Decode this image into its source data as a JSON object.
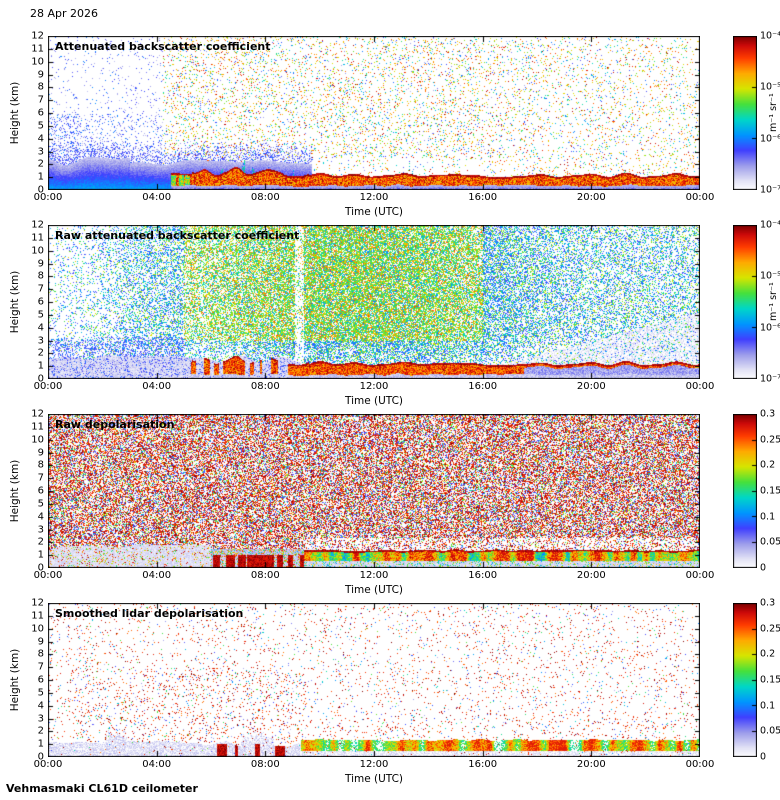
{
  "date_label": "28 Apr 2026",
  "footer": "Vehmasmaki CL61D ceilometer",
  "axis": {
    "xlabel": "Time (UTC)",
    "ylabel": "Height (km)",
    "x_ticks": [
      "00:00",
      "04:00",
      "08:00",
      "12:00",
      "16:00",
      "20:00",
      "00:00"
    ],
    "y_ticks": [
      "12",
      "11",
      "10",
      "9",
      "8",
      "7",
      "6",
      "5",
      "4",
      "3",
      "2",
      "1",
      "0"
    ]
  },
  "colorbars": {
    "backscatter": {
      "scale": "log",
      "ticks": [
        "10⁻⁴",
        "10⁻⁵",
        "10⁻⁶",
        "10⁻⁷"
      ],
      "unit": "m⁻¹ sr⁻¹"
    },
    "depol": {
      "scale": "linear",
      "ticks": [
        "0.3",
        "0.25",
        "0.2",
        "0.15",
        "0.1",
        "0.05",
        "0"
      ],
      "unit": ""
    }
  },
  "panels": [
    {
      "title": "Attenuated backscatter coefficient",
      "cbar": "backscatter"
    },
    {
      "title": "Raw attenuated backscatter coefficient",
      "cbar": "backscatter"
    },
    {
      "title": "Raw depolarisation",
      "cbar": "depol"
    },
    {
      "title": "Smoothed lidar depolarisation",
      "cbar": "depol"
    }
  ],
  "chart_data": [
    {
      "type": "heatmap",
      "title": "Attenuated backscatter coefficient",
      "xlabel": "Time (UTC)",
      "ylabel": "Height (km)",
      "xlim_hours": [
        0,
        24
      ],
      "ylim_km": [
        0,
        12
      ],
      "x_ticks": [
        "00:00",
        "04:00",
        "08:00",
        "12:00",
        "16:00",
        "20:00",
        "00:00"
      ],
      "y_ticks": [
        0,
        1,
        2,
        3,
        4,
        5,
        6,
        7,
        8,
        9,
        10,
        11,
        12
      ],
      "colorbar": {
        "scale": "log",
        "min": 1e-07,
        "max": 0.0001,
        "unit": "m⁻¹ sr⁻¹",
        "ticks": [
          "10⁻⁴",
          "10⁻⁵",
          "10⁻⁶",
          "10⁻⁷"
        ]
      },
      "features": [
        {
          "name": "aerosol boundary layer",
          "time_h": [
            0,
            9.5
          ],
          "height_km": [
            0,
            2.5
          ],
          "approx_value": "~1e-6 (blue)"
        },
        {
          "name": "low cloud / precipitation band",
          "time_h": [
            4.5,
            24
          ],
          "height_km": [
            0.3,
            1.6
          ],
          "approx_value": ">1e-5 (saturated red, dark upper edge)"
        },
        {
          "name": "convective plumes",
          "time_h": [
            5.2,
            9.6
          ],
          "height_km": [
            0,
            4
          ],
          "approx_value": "~3e-6 (cyan-green columns)"
        },
        {
          "name": "sparse background noise speckle",
          "time_h": [
            0,
            24
          ],
          "height_km": [
            2,
            12
          ],
          "approx_value": "1e-7 to 1e-5 (warm-coloured speckle after 04:00)"
        }
      ]
    },
    {
      "type": "heatmap",
      "title": "Raw attenuated backscatter coefficient",
      "xlabel": "Time (UTC)",
      "ylabel": "Height (km)",
      "xlim_hours": [
        0,
        24
      ],
      "ylim_km": [
        0,
        12
      ],
      "x_ticks": [
        "00:00",
        "04:00",
        "08:00",
        "12:00",
        "16:00",
        "20:00",
        "00:00"
      ],
      "y_ticks": [
        0,
        1,
        2,
        3,
        4,
        5,
        6,
        7,
        8,
        9,
        10,
        11,
        12
      ],
      "colorbar": {
        "scale": "log",
        "min": 1e-07,
        "max": 0.0001,
        "unit": "m⁻¹ sr⁻¹",
        "ticks": [
          "10⁻⁴",
          "10⁻⁵",
          "10⁻⁶",
          "10⁻⁷"
        ]
      },
      "features": [
        {
          "name": "daytime solar background noise",
          "time_h": [
            5,
            17
          ],
          "height_km": [
            0,
            12
          ],
          "approx_value": "dense cyan/green/yellow speckle ~1e-6 to 1e-5"
        },
        {
          "name": "night-time sparse blue noise",
          "time_h": [
            0,
            5
          ],
          "height_km": [
            2,
            12
          ],
          "approx_value": "~1e-7 to 1e-6"
        },
        {
          "name": "low cloud / precipitation band",
          "time_h": [
            5.2,
            24
          ],
          "height_km": [
            0.3,
            1.6
          ],
          "approx_value": ">1e-5 (saturated red, dark upper edge)"
        },
        {
          "name": "pale low-aerosol layer",
          "time_h": [
            0,
            9.3
          ],
          "height_km": [
            0,
            2
          ],
          "approx_value": "~1e-7"
        },
        {
          "name": "reduced-noise wedge",
          "time_h": [
            14.5,
            24
          ],
          "height_km": [
            0,
            5
          ],
          "approx_value": "pale, low signal"
        },
        {
          "name": "light vertical gap",
          "time_h": [
            9.1,
            9.4
          ],
          "height_km": [
            0,
            12
          ],
          "approx_value": "data gap / reduced noise column"
        }
      ]
    },
    {
      "type": "heatmap",
      "title": "Raw depolarisation",
      "xlabel": "Time (UTC)",
      "ylabel": "Height (km)",
      "xlim_hours": [
        0,
        24
      ],
      "ylim_km": [
        0,
        12
      ],
      "x_ticks": [
        "00:00",
        "04:00",
        "08:00",
        "12:00",
        "16:00",
        "20:00",
        "00:00"
      ],
      "y_ticks": [
        0,
        1,
        2,
        3,
        4,
        5,
        6,
        7,
        8,
        9,
        10,
        11,
        12
      ],
      "colorbar": {
        "scale": "linear",
        "min": 0,
        "max": 0.3,
        "unit": "",
        "ticks": [
          0.3,
          0.25,
          0.2,
          0.15,
          0.1,
          0.05,
          0
        ]
      },
      "features": [
        {
          "name": "saturated depolarisation noise (no signal)",
          "time_h": [
            0,
            24
          ],
          "height_km": [
            1.5,
            12
          ],
          "approx_value": "random 0.1-0.3 dense speckle"
        },
        {
          "name": "low-depol aerosol layer",
          "time_h": [
            0,
            6
          ],
          "height_km": [
            0,
            1.5
          ],
          "approx_value": "~0.02"
        },
        {
          "name": "high-depol surface patches",
          "time_h": [
            5.7,
            9.4
          ],
          "height_km": [
            0,
            1
          ],
          "approx_value": "~0.3 (dark red blocks)"
        },
        {
          "name": "mixed-depol cloud band",
          "time_h": [
            9.4,
            24
          ],
          "height_km": [
            0.6,
            1.4
          ],
          "approx_value": "0.05-0.25, dark upper edge"
        }
      ]
    },
    {
      "type": "heatmap",
      "title": "Smoothed lidar depolarisation",
      "xlabel": "Time (UTC)",
      "ylabel": "Height (km)",
      "xlim_hours": [
        0,
        24
      ],
      "ylim_km": [
        0,
        12
      ],
      "x_ticks": [
        "00:00",
        "04:00",
        "08:00",
        "12:00",
        "16:00",
        "20:00",
        "00:00"
      ],
      "y_ticks": [
        0,
        1,
        2,
        3,
        4,
        5,
        6,
        7,
        8,
        9,
        10,
        11,
        12
      ],
      "colorbar": {
        "scale": "linear",
        "min": 0,
        "max": 0.3,
        "unit": "",
        "ticks": [
          0.3,
          0.25,
          0.2,
          0.15,
          0.1,
          0.05,
          0
        ]
      },
      "features": [
        {
          "name": "sparse residual noise speckle",
          "time_h": [
            0,
            24
          ],
          "height_km": [
            0,
            12
          ],
          "approx_value": "isolated ~0.25-0.3 dots"
        },
        {
          "name": "low-depol aerosol layer",
          "time_h": [
            0,
            9.3
          ],
          "height_km": [
            0,
            1.3
          ],
          "approx_value": "~0.03 (pale grey)"
        },
        {
          "name": "high-depol patches",
          "time_h": [
            6.2,
            8.7
          ],
          "height_km": [
            0,
            1
          ],
          "approx_value": "~0.3"
        },
        {
          "name": "mixed-depol cloud band",
          "time_h": [
            9.3,
            24
          ],
          "height_km": [
            0.5,
            1.4
          ],
          "approx_value": "0.05-0.25 blobs (green/yellow/red/cyan)"
        }
      ]
    }
  ]
}
